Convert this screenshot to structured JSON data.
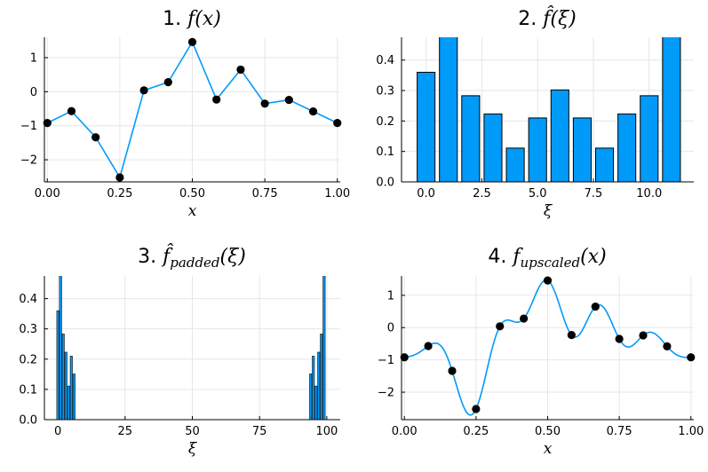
{
  "colors": {
    "series": "#009AF9",
    "marker": "#000000",
    "grid": "#E6E6E6",
    "axis": "#000000"
  },
  "chart_data": [
    {
      "id": "p1",
      "type": "line",
      "title_prefix": "1. ",
      "title_math": "f(x)",
      "xlabel": "x",
      "xlim": [
        -0.01,
        1.01
      ],
      "ylim": [
        -2.65,
        1.6
      ],
      "xticks": [
        0,
        0.25,
        0.5,
        0.75,
        1.0
      ],
      "xtick_labels": [
        "0.00",
        "0.25",
        "0.50",
        "0.75",
        "1.00"
      ],
      "yticks": [
        1,
        0,
        -1,
        -2
      ],
      "ytick_labels": [
        "1",
        "0",
        "−1",
        "−2"
      ],
      "x": [
        0,
        0.0833,
        0.1667,
        0.25,
        0.3333,
        0.4167,
        0.5,
        0.5833,
        0.6667,
        0.75,
        0.8333,
        0.9167,
        1.0
      ],
      "y": [
        -0.92,
        -0.57,
        -1.34,
        -2.52,
        0.04,
        0.28,
        1.46,
        -0.23,
        0.65,
        -0.35,
        -0.24,
        -0.58,
        -0.92
      ],
      "markers": true
    },
    {
      "id": "p2",
      "type": "bar",
      "title_prefix": "2. ",
      "title_math": "f̂(ξ)",
      "xlabel": "ξ",
      "xlim": [
        -1.1,
        12.0
      ],
      "ylim": [
        0,
        0.475
      ],
      "xticks": [
        0,
        2.5,
        5,
        7.5,
        10
      ],
      "xtick_labels": [
        "0.0",
        "2.5",
        "5.0",
        "7.5",
        "10.0"
      ],
      "yticks": [
        0,
        0.1,
        0.2,
        0.3,
        0.4
      ],
      "ytick_labels": [
        "0.0",
        "0.1",
        "0.2",
        "0.3",
        "0.4"
      ],
      "x": [
        0,
        1,
        2,
        3,
        4,
        5,
        6,
        7,
        8,
        9,
        10,
        11
      ],
      "values": [
        0.36,
        0.48,
        0.283,
        0.223,
        0.111,
        0.21,
        0.302,
        0.21,
        0.111,
        0.223,
        0.283,
        0.48
      ],
      "bar_width": 0.8
    },
    {
      "id": "p3",
      "type": "bar",
      "title_prefix": "3. ",
      "title_math": "f̂",
      "title_sub": "padded",
      "title_suffix": "(ξ)",
      "xlabel": "ξ",
      "xlim": [
        -5,
        105
      ],
      "ylim": [
        0,
        0.475
      ],
      "xticks": [
        0,
        25,
        50,
        75,
        100
      ],
      "xtick_labels": [
        "0",
        "25",
        "50",
        "75",
        "100"
      ],
      "yticks": [
        0,
        0.1,
        0.2,
        0.3,
        0.4
      ],
      "ytick_labels": [
        "0.0",
        "0.1",
        "0.2",
        "0.3",
        "0.4"
      ],
      "x": [
        0,
        1,
        2,
        3,
        4,
        5,
        6,
        94,
        95,
        96,
        97,
        98,
        99
      ],
      "values": [
        0.36,
        0.48,
        0.283,
        0.223,
        0.111,
        0.21,
        0.151,
        0.151,
        0.21,
        0.111,
        0.223,
        0.283,
        0.48
      ],
      "bar_width": 0.8
    },
    {
      "id": "p4",
      "type": "line",
      "title_prefix": "4. ",
      "title_math": "f",
      "title_sub": "upscaled",
      "title_suffix": "(x)",
      "xlabel": "x",
      "xlim": [
        -0.01,
        1.01
      ],
      "ylim": [
        -2.85,
        1.6
      ],
      "xticks": [
        0,
        0.25,
        0.5,
        0.75,
        1.0
      ],
      "xtick_labels": [
        "0.00",
        "0.25",
        "0.50",
        "0.75",
        "1.00"
      ],
      "yticks": [
        1,
        0,
        -1,
        -2
      ],
      "ytick_labels": [
        "1",
        "0",
        "−1",
        "−2"
      ],
      "x": [
        0,
        0.0833,
        0.1667,
        0.25,
        0.3333,
        0.4167,
        0.5,
        0.5833,
        0.6667,
        0.75,
        0.8333,
        0.9167,
        1.0
      ],
      "y": [
        -0.92,
        -0.57,
        -1.34,
        -2.52,
        0.04,
        0.28,
        1.46,
        -0.23,
        0.65,
        -0.35,
        -0.24,
        -0.58,
        -0.92
      ],
      "smooth": true,
      "markers": true
    }
  ]
}
